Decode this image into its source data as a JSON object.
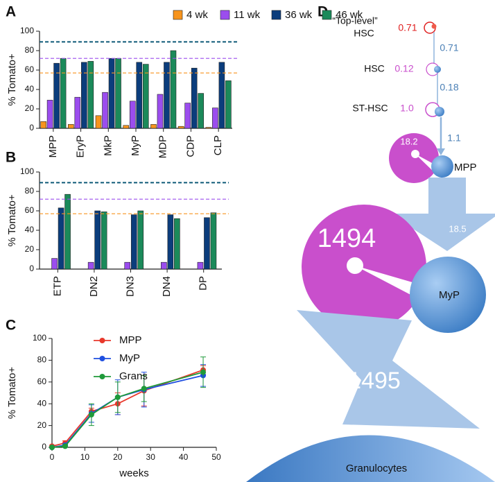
{
  "chart_data": [
    {
      "type": "bar",
      "panel": "A",
      "ylabel": "% Tomato+",
      "categories": [
        "MPP",
        "EryP",
        "MkP",
        "MyP",
        "MDP",
        "CDP",
        "CLP"
      ],
      "series": [
        {
          "name": "4 wk",
          "color": "#f7941d",
          "values": [
            7,
            4,
            13,
            3,
            4,
            2,
            1
          ]
        },
        {
          "name": "11 wk",
          "color": "#9b4dee",
          "values": [
            29,
            32,
            37,
            28,
            35,
            26,
            21
          ]
        },
        {
          "name": "36 wk",
          "color": "#0b3d7c",
          "values": [
            67,
            68,
            72,
            68,
            68,
            62,
            68
          ]
        },
        {
          "name": "46 wk",
          "color": "#1b8a5a",
          "values": [
            72,
            69,
            72,
            66,
            80,
            36,
            49
          ]
        }
      ],
      "ylim": [
        0,
        100
      ],
      "yticks": [
        0,
        20,
        40,
        60,
        80,
        100
      ],
      "reference_lines": [
        {
          "value": 89,
          "color": "#0f5a78"
        },
        {
          "value": 72,
          "color": "#9b4dee"
        },
        {
          "value": 57,
          "color": "#f7941d"
        }
      ],
      "legend": "top"
    },
    {
      "type": "bar",
      "panel": "B",
      "ylabel": "% Tomato+",
      "categories": [
        "ETP",
        "DN2",
        "DN3",
        "DN4",
        "DP"
      ],
      "series": [
        {
          "color": "#f7941d",
          "values": [
            0,
            0,
            0,
            0,
            0
          ]
        },
        {
          "color": "#9b4dee",
          "values": [
            11,
            7,
            7,
            7,
            7
          ]
        },
        {
          "color": "#0b3d7c",
          "values": [
            63,
            60,
            56,
            56,
            53
          ]
        },
        {
          "color": "#1b8a5a",
          "values": [
            77,
            59,
            60,
            52,
            58
          ]
        }
      ],
      "ylim": [
        0,
        100
      ],
      "yticks": [
        0,
        20,
        40,
        60,
        80,
        100
      ],
      "reference_lines": [
        {
          "value": 89,
          "color": "#0f5a78"
        },
        {
          "value": 72,
          "color": "#9b4dee"
        },
        {
          "value": 57,
          "color": "#f7941d"
        }
      ],
      "legend": "none"
    },
    {
      "type": "line",
      "panel": "C",
      "xlabel": "weeks",
      "ylabel": "% Tomato+",
      "x": [
        0,
        4,
        12,
        20,
        28,
        46
      ],
      "series": [
        {
          "name": "MPP",
          "color": "#e8382b",
          "values": [
            1,
            4,
            33,
            40,
            52,
            71
          ],
          "errors": [
            1,
            2,
            3,
            10,
            14,
            4
          ]
        },
        {
          "name": "MyP",
          "color": "#1f4fe0",
          "values": [
            0,
            2,
            31,
            46,
            53,
            66
          ],
          "errors": [
            0,
            1,
            8,
            16,
            16,
            10
          ]
        },
        {
          "name": "Grans",
          "color": "#1f9a3a",
          "values": [
            0,
            1,
            30,
            46,
            54,
            69
          ],
          "errors": [
            0,
            1,
            10,
            14,
            12,
            14
          ]
        }
      ],
      "xlim": [
        0,
        50
      ],
      "xticks": [
        0,
        10,
        20,
        30,
        40,
        50
      ],
      "ylim": [
        0,
        100
      ],
      "yticks": [
        0,
        20,
        40,
        60,
        80,
        100
      ],
      "legend": "top-left"
    }
  ],
  "diagram": {
    "panel": "D",
    "nodes": [
      {
        "label": [
          "“Top-level”",
          "HSC"
        ],
        "self_rate": "0.71"
      },
      {
        "label": [
          "HSC"
        ],
        "self_rate": "0.12"
      },
      {
        "label": [
          "ST-HSC"
        ],
        "self_rate": "1.0"
      },
      {
        "label": [
          "MPP"
        ],
        "self_rate": "18.2"
      },
      {
        "label": [
          "MyP"
        ],
        "self_rate": "1494"
      },
      {
        "label": [
          "Granulocytes"
        ]
      }
    ],
    "edges": [
      {
        "rate": "0.71"
      },
      {
        "rate": "0.18"
      },
      {
        "rate": "1.1"
      },
      {
        "rate": "18.5"
      },
      {
        "rate": "1495"
      }
    ]
  }
}
